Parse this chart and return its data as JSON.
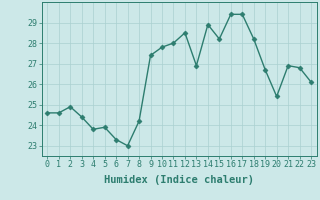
{
  "x": [
    0,
    1,
    2,
    3,
    4,
    5,
    6,
    7,
    8,
    9,
    10,
    11,
    12,
    13,
    14,
    15,
    16,
    17,
    18,
    19,
    20,
    21,
    22,
    23
  ],
  "y": [
    24.6,
    24.6,
    24.9,
    24.4,
    23.8,
    23.9,
    23.3,
    23.0,
    24.2,
    27.4,
    27.8,
    28.0,
    28.5,
    26.9,
    28.9,
    28.2,
    29.4,
    29.4,
    28.2,
    26.7,
    25.4,
    26.9,
    26.8,
    26.1
  ],
  "line_color": "#2d7d6f",
  "marker": "D",
  "marker_size": 2.5,
  "bg_color": "#cce8e8",
  "grid_color": "#aad0d0",
  "xlabel": "Humidex (Indice chaleur)",
  "xlabel_fontsize": 7.5,
  "ylim": [
    22.5,
    30.0
  ],
  "xlim": [
    -0.5,
    23.5
  ],
  "yticks": [
    23,
    24,
    25,
    26,
    27,
    28,
    29
  ],
  "xticks": [
    0,
    1,
    2,
    3,
    4,
    5,
    6,
    7,
    8,
    9,
    10,
    11,
    12,
    13,
    14,
    15,
    16,
    17,
    18,
    19,
    20,
    21,
    22,
    23
  ],
  "tick_fontsize": 6,
  "line_width": 1.0
}
